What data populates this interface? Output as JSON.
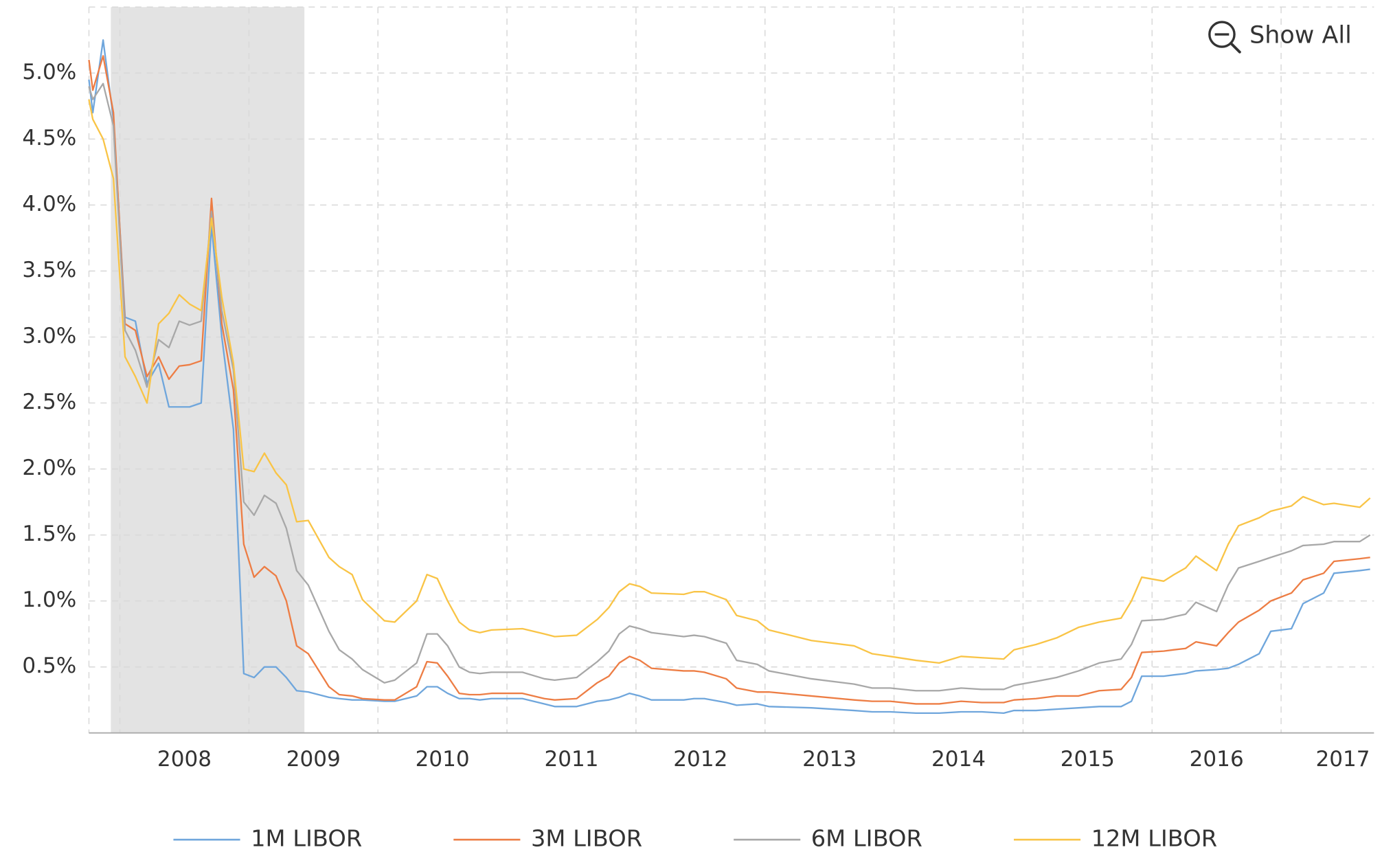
{
  "chart_data": {
    "type": "line",
    "button": "Show All",
    "xlim": [
      2007.76,
      2017.72
    ],
    "xticks": [
      2008,
      2009,
      2010,
      2011,
      2012,
      2013,
      2014,
      2015,
      2016,
      2017
    ],
    "ylim": [
      0,
      5.5
    ],
    "yticks": [
      {
        "value": 0.5,
        "label": "0.5%"
      },
      {
        "value": 1.0,
        "label": "1.0%"
      },
      {
        "value": 1.5,
        "label": "1.5%"
      },
      {
        "value": 2.0,
        "label": "2.0%"
      },
      {
        "value": 2.5,
        "label": "2.5%"
      },
      {
        "value": 3.0,
        "label": "3.0%"
      },
      {
        "value": 3.5,
        "label": "3.5%"
      },
      {
        "value": 4.0,
        "label": "4.0%"
      },
      {
        "value": 4.5,
        "label": "4.5%"
      },
      {
        "value": 5.0,
        "label": "5.0%"
      }
    ],
    "grid": true,
    "legend": "bottom",
    "shaded_region": {
      "x0": 2007.93,
      "x1": 2009.43,
      "color": "#e3e3e3"
    },
    "x": [
      2007.76,
      2007.79,
      2007.87,
      2007.95,
      2008.04,
      2008.12,
      2008.21,
      2008.3,
      2008.38,
      2008.46,
      2008.54,
      2008.63,
      2008.71,
      2008.79,
      2008.88,
      2008.96,
      2009.04,
      2009.12,
      2009.21,
      2009.29,
      2009.37,
      2009.46,
      2009.62,
      2009.7,
      2009.8,
      2009.88,
      2010.05,
      2010.13,
      2010.3,
      2010.38,
      2010.46,
      2010.54,
      2010.63,
      2010.71,
      2010.79,
      2010.88,
      2011.12,
      2011.29,
      2011.37,
      2011.54,
      2011.7,
      2011.79,
      2011.87,
      2011.95,
      2012.03,
      2012.12,
      2012.37,
      2012.45,
      2012.53,
      2012.7,
      2012.78,
      2012.94,
      2013.03,
      2013.36,
      2013.69,
      2013.83,
      2013.97,
      2014.17,
      2014.35,
      2014.52,
      2014.68,
      2014.85,
      2014.93,
      2015.1,
      2015.26,
      2015.43,
      2015.59,
      2015.76,
      2015.84,
      2015.92,
      2016.09,
      2016.17,
      2016.26,
      2016.34,
      2016.5,
      2016.59,
      2016.67,
      2016.83,
      2016.92,
      2017.08,
      2017.17,
      2017.33,
      2017.41,
      2017.61,
      2017.69
    ],
    "series": [
      {
        "name": "1M LIBOR",
        "color": "#6fa6dc",
        "values": [
          4.95,
          4.7,
          5.25,
          4.65,
          3.15,
          3.12,
          2.65,
          2.8,
          2.47,
          2.47,
          2.47,
          2.5,
          3.85,
          3.0,
          2.3,
          0.45,
          0.42,
          0.5,
          0.5,
          0.42,
          0.32,
          0.31,
          0.27,
          0.26,
          0.25,
          0.25,
          0.24,
          0.24,
          0.28,
          0.35,
          0.35,
          0.3,
          0.26,
          0.26,
          0.25,
          0.26,
          0.26,
          0.22,
          0.2,
          0.2,
          0.24,
          0.25,
          0.27,
          0.3,
          0.28,
          0.25,
          0.25,
          0.26,
          0.26,
          0.23,
          0.21,
          0.22,
          0.2,
          0.19,
          0.17,
          0.16,
          0.16,
          0.15,
          0.15,
          0.16,
          0.16,
          0.15,
          0.17,
          0.17,
          0.18,
          0.19,
          0.2,
          0.2,
          0.24,
          0.43,
          0.43,
          0.44,
          0.45,
          0.47,
          0.48,
          0.49,
          0.52,
          0.6,
          0.77,
          0.79,
          0.98,
          1.06,
          1.21,
          1.23,
          1.24
        ]
      },
      {
        "name": "3M LIBOR",
        "color": "#ed7d44",
        "values": [
          5.1,
          4.87,
          5.13,
          4.7,
          3.1,
          3.05,
          2.7,
          2.85,
          2.68,
          2.78,
          2.79,
          2.82,
          4.05,
          3.1,
          2.6,
          1.43,
          1.18,
          1.26,
          1.19,
          1.0,
          0.66,
          0.6,
          0.35,
          0.29,
          0.28,
          0.26,
          0.25,
          0.25,
          0.35,
          0.54,
          0.53,
          0.43,
          0.3,
          0.29,
          0.29,
          0.3,
          0.3,
          0.26,
          0.25,
          0.26,
          0.38,
          0.43,
          0.53,
          0.58,
          0.55,
          0.49,
          0.47,
          0.47,
          0.46,
          0.41,
          0.34,
          0.31,
          0.31,
          0.28,
          0.25,
          0.24,
          0.24,
          0.22,
          0.22,
          0.24,
          0.23,
          0.23,
          0.25,
          0.26,
          0.28,
          0.28,
          0.32,
          0.33,
          0.42,
          0.61,
          0.62,
          0.63,
          0.64,
          0.69,
          0.66,
          0.76,
          0.84,
          0.93,
          1.0,
          1.06,
          1.16,
          1.21,
          1.3,
          1.32,
          1.33
        ]
      },
      {
        "name": "6M LIBOR",
        "color": "#a8a8a8",
        "values": [
          4.9,
          4.8,
          4.92,
          4.6,
          3.05,
          2.9,
          2.62,
          2.98,
          2.92,
          3.12,
          3.09,
          3.12,
          3.95,
          3.2,
          2.75,
          1.75,
          1.65,
          1.8,
          1.74,
          1.55,
          1.23,
          1.12,
          0.77,
          0.63,
          0.56,
          0.48,
          0.38,
          0.4,
          0.53,
          0.75,
          0.75,
          0.66,
          0.5,
          0.46,
          0.45,
          0.46,
          0.46,
          0.41,
          0.4,
          0.42,
          0.54,
          0.62,
          0.75,
          0.81,
          0.79,
          0.76,
          0.73,
          0.74,
          0.73,
          0.68,
          0.55,
          0.52,
          0.47,
          0.41,
          0.37,
          0.34,
          0.34,
          0.32,
          0.32,
          0.34,
          0.33,
          0.33,
          0.36,
          0.39,
          0.42,
          0.47,
          0.53,
          0.56,
          0.67,
          0.85,
          0.86,
          0.88,
          0.9,
          0.99,
          0.92,
          1.12,
          1.25,
          1.3,
          1.33,
          1.38,
          1.42,
          1.43,
          1.45,
          1.45,
          1.5
        ]
      },
      {
        "name": "12M LIBOR",
        "color": "#f9c446",
        "values": [
          4.8,
          4.65,
          4.5,
          4.2,
          2.85,
          2.7,
          2.5,
          3.1,
          3.18,
          3.32,
          3.25,
          3.2,
          3.9,
          3.3,
          2.8,
          2.0,
          1.98,
          2.12,
          1.97,
          1.88,
          1.6,
          1.61,
          1.33,
          1.26,
          1.2,
          1.01,
          0.85,
          0.84,
          1.0,
          1.2,
          1.17,
          1.0,
          0.84,
          0.78,
          0.76,
          0.78,
          0.79,
          0.75,
          0.73,
          0.74,
          0.86,
          0.95,
          1.07,
          1.13,
          1.11,
          1.06,
          1.05,
          1.07,
          1.07,
          1.01,
          0.89,
          0.85,
          0.78,
          0.7,
          0.66,
          0.6,
          0.58,
          0.55,
          0.53,
          0.58,
          0.57,
          0.56,
          0.63,
          0.67,
          0.72,
          0.8,
          0.84,
          0.87,
          1.0,
          1.18,
          1.15,
          1.2,
          1.25,
          1.34,
          1.23,
          1.43,
          1.57,
          1.63,
          1.68,
          1.72,
          1.79,
          1.73,
          1.74,
          1.71,
          1.78
        ]
      }
    ]
  }
}
